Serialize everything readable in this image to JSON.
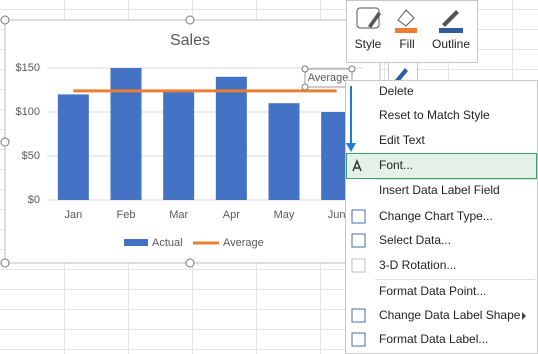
{
  "chart_data": {
    "type": "bar",
    "title": "Sales",
    "categories": [
      "Jan",
      "Feb",
      "Mar",
      "Apr",
      "May",
      "Jun"
    ],
    "series": [
      {
        "name": "Actual",
        "type": "bar",
        "color": "#4472c4",
        "values": [
          120,
          150,
          123,
          140,
          110,
          100
        ]
      },
      {
        "name": "Average",
        "type": "line",
        "color": "#ed7d31",
        "values": [
          124,
          124,
          124,
          124,
          124,
          124
        ]
      }
    ],
    "ylim": [
      0,
      170
    ],
    "yticks": [
      {
        "value": 0,
        "label": "$0"
      },
      {
        "value": 50,
        "label": "$50"
      },
      {
        "value": 100,
        "label": "$100"
      },
      {
        "value": 150,
        "label": "$150"
      }
    ],
    "grid": true,
    "legend": "bottom"
  },
  "toolbar": {
    "buttons": [
      "Style",
      "Fill",
      "Outline"
    ]
  },
  "context_menu": {
    "items": [
      "Delete",
      "Reset to Match Style",
      "Edit Text",
      "Font...",
      "Insert Data Label Field",
      "Change Chart Type...",
      "Select Data...",
      "3-D Rotation...",
      "Format Data Point...",
      "Change Data Label Shape",
      "Format Data Label..."
    ]
  }
}
